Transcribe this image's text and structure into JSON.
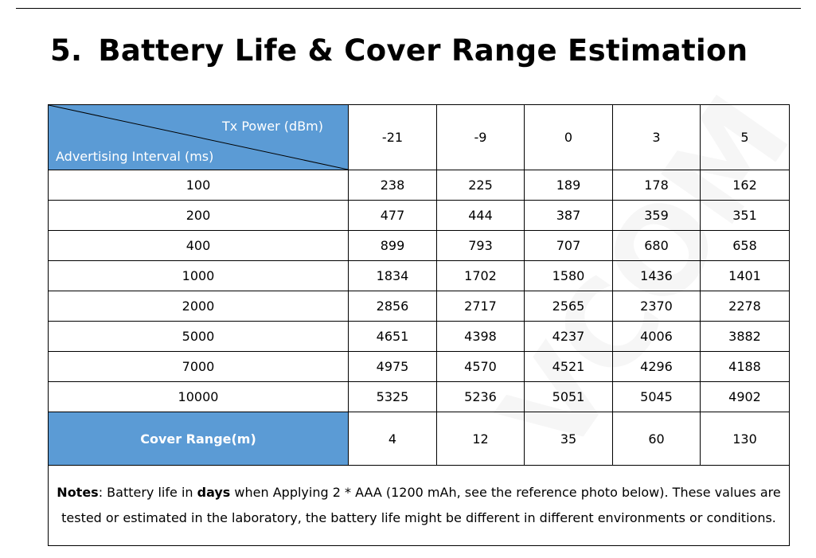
{
  "section": {
    "number": "5.",
    "title": "Battery Life & Cover Range Estimation"
  },
  "table": {
    "header_row_label": "Tx Power (dBm)",
    "header_col_label": "Advertising Interval (ms)",
    "tx_powers": [
      "-21",
      "-9",
      "0",
      "3",
      "5"
    ],
    "rows": [
      {
        "interval": "100",
        "values": [
          "238",
          "225",
          "189",
          "178",
          "162"
        ]
      },
      {
        "interval": "200",
        "values": [
          "477",
          "444",
          "387",
          "359",
          "351"
        ]
      },
      {
        "interval": "400",
        "values": [
          "899",
          "793",
          "707",
          "680",
          "658"
        ]
      },
      {
        "interval": "1000",
        "values": [
          "1834",
          "1702",
          "1580",
          "1436",
          "1401"
        ]
      },
      {
        "interval": "2000",
        "values": [
          "2856",
          "2717",
          "2565",
          "2370",
          "2278"
        ]
      },
      {
        "interval": "5000",
        "values": [
          "4651",
          "4398",
          "4237",
          "4006",
          "3882"
        ]
      },
      {
        "interval": "7000",
        "values": [
          "4975",
          "4570",
          "4521",
          "4296",
          "4188"
        ]
      },
      {
        "interval": "10000",
        "values": [
          "5325",
          "5236",
          "5051",
          "5045",
          "4902"
        ]
      }
    ],
    "cover_range": {
      "label": "Cover Range(m)",
      "values": [
        "4",
        "12",
        "35",
        "60",
        "130"
      ]
    },
    "notes": {
      "label": "Notes",
      "text_1": ": Battery life in ",
      "bold_word": "days",
      "text_2": " when Applying 2 * AAA (1200 mAh, see the reference photo below). These values are tested or estimated in the laboratory, the battery life might be different in different environments or conditions."
    }
  },
  "colors": {
    "header_fill": "#5b9bd5"
  }
}
